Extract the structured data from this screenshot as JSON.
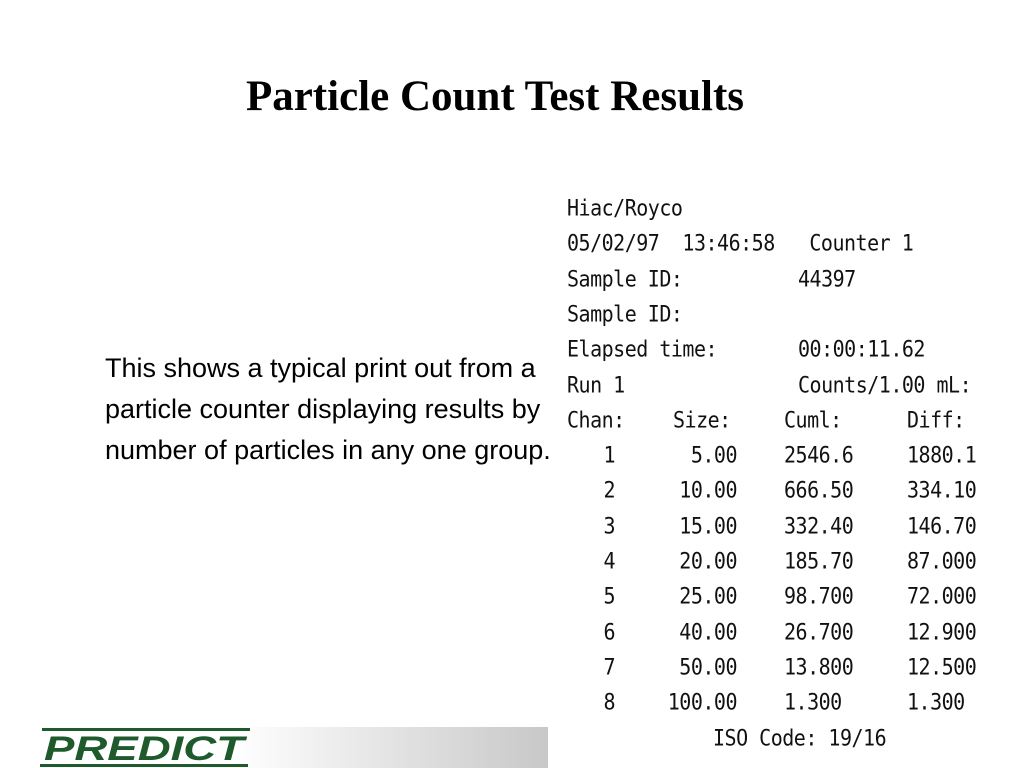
{
  "slide": {
    "title": "Particle Count Test Results",
    "description": "This shows a typical print out from a particle counter displaying results by number of particles in any one group.",
    "logo_text": "PREDICT",
    "brand_color": "#1e5a2c"
  },
  "printout": {
    "lines": [
      {
        "left": "Hiac/Royco",
        "right": ""
      },
      {
        "left": "05/02/97  13:46:58   Counter 1",
        "right": ""
      },
      {
        "left": "Sample ID:",
        "right": "44397"
      },
      {
        "left": "Sample ID:",
        "right": ""
      },
      {
        "left": "Elapsed time:",
        "right": "00:00:11.62"
      },
      {
        "left": "Run 1",
        "right": "Counts/1.00 mL:"
      }
    ],
    "headers": [
      "Chan:",
      "Size:",
      "Cuml:",
      "Diff:"
    ],
    "rows": [
      [
        "1",
        "5.00",
        "2546.6",
        "1880.1"
      ],
      [
        "2",
        "10.00",
        "666.50",
        "334.10"
      ],
      [
        "3",
        "15.00",
        "332.40",
        "146.70"
      ],
      [
        "4",
        "20.00",
        "185.70",
        "87.000"
      ],
      [
        "5",
        "25.00",
        "98.700",
        "72.000"
      ],
      [
        "6",
        "40.00",
        "26.700",
        "12.900"
      ],
      [
        "7",
        "50.00",
        "13.800",
        "12.500"
      ],
      [
        "8",
        "100.00",
        "1.300",
        "1.300"
      ]
    ],
    "iso_code": "ISO Code: 19/16"
  }
}
